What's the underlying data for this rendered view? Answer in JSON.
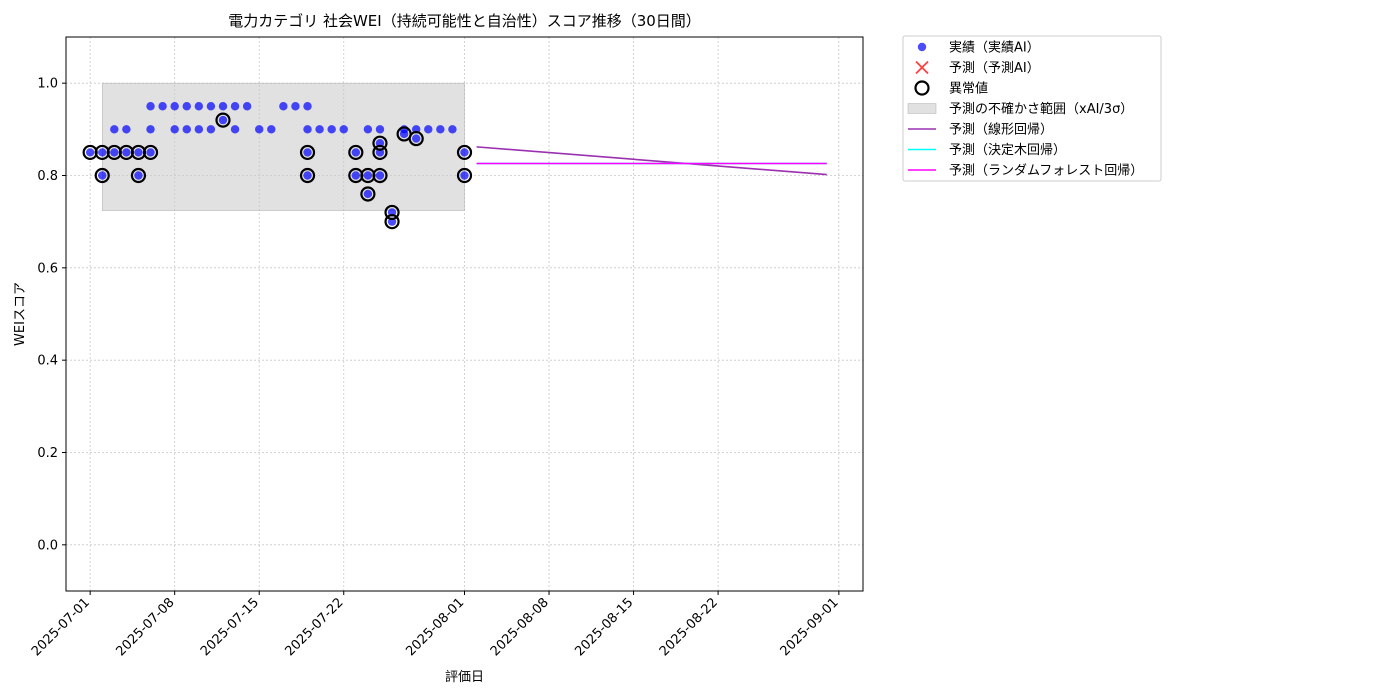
{
  "chart_data": {
    "type": "scatter",
    "title": "電力カテゴリ 社会WEI（持続可能性と自治性）スコア推移（30日間）",
    "xlabel": "評価日",
    "ylabel": "WEIスコア",
    "xlim": [
      "2025-06-29",
      "2025-09-03"
    ],
    "ylim": [
      -0.1,
      1.1
    ],
    "grid": true,
    "legend_position": "outside-top-right",
    "x_ticks": [
      "2025-07-01",
      "2025-07-08",
      "2025-07-15",
      "2025-07-22",
      "2025-08-01",
      "2025-08-08",
      "2025-08-15",
      "2025-08-22",
      "2025-09-01"
    ],
    "y_ticks": [
      "0.0",
      "0.2",
      "0.4",
      "0.6",
      "0.8",
      "1.0"
    ],
    "y_tick_values": [
      0.0,
      0.2,
      0.4,
      0.6,
      0.8,
      1.0
    ],
    "actual": {
      "name": "実績（実績AI）",
      "color": "#0000ff",
      "points": [
        [
          "2025-07-01",
          0.85
        ],
        [
          "2025-07-02",
          0.85
        ],
        [
          "2025-07-02",
          0.8
        ],
        [
          "2025-07-03",
          0.85
        ],
        [
          "2025-07-03",
          0.9
        ],
        [
          "2025-07-04",
          0.85
        ],
        [
          "2025-07-04",
          0.9
        ],
        [
          "2025-07-05",
          0.8
        ],
        [
          "2025-07-05",
          0.85
        ],
        [
          "2025-07-06",
          0.85
        ],
        [
          "2025-07-06",
          0.9
        ],
        [
          "2025-07-06",
          0.95
        ],
        [
          "2025-07-07",
          0.95
        ],
        [
          "2025-07-08",
          0.95
        ],
        [
          "2025-07-08",
          0.9
        ],
        [
          "2025-07-09",
          0.95
        ],
        [
          "2025-07-09",
          0.9
        ],
        [
          "2025-07-10",
          0.9
        ],
        [
          "2025-07-10",
          0.95
        ],
        [
          "2025-07-11",
          0.9
        ],
        [
          "2025-07-11",
          0.95
        ],
        [
          "2025-07-12",
          0.92
        ],
        [
          "2025-07-12",
          0.95
        ],
        [
          "2025-07-13",
          0.9
        ],
        [
          "2025-07-13",
          0.95
        ],
        [
          "2025-07-14",
          0.95
        ],
        [
          "2025-07-15",
          0.9
        ],
        [
          "2025-07-16",
          0.9
        ],
        [
          "2025-07-17",
          0.95
        ],
        [
          "2025-07-18",
          0.95
        ],
        [
          "2025-07-19",
          0.85
        ],
        [
          "2025-07-19",
          0.8
        ],
        [
          "2025-07-19",
          0.95
        ],
        [
          "2025-07-19",
          0.9
        ],
        [
          "2025-07-20",
          0.9
        ],
        [
          "2025-07-21",
          0.9
        ],
        [
          "2025-07-22",
          0.9
        ],
        [
          "2025-07-23",
          0.85
        ],
        [
          "2025-07-23",
          0.8
        ],
        [
          "2025-07-24",
          0.8
        ],
        [
          "2025-07-24",
          0.76
        ],
        [
          "2025-07-24",
          0.9
        ],
        [
          "2025-07-25",
          0.85
        ],
        [
          "2025-07-25",
          0.8
        ],
        [
          "2025-07-25",
          0.87
        ],
        [
          "2025-07-25",
          0.9
        ],
        [
          "2025-07-26",
          0.72
        ],
        [
          "2025-07-26",
          0.7
        ],
        [
          "2025-07-27",
          0.89
        ],
        [
          "2025-07-27",
          0.9
        ],
        [
          "2025-07-28",
          0.88
        ],
        [
          "2025-07-28",
          0.9
        ],
        [
          "2025-07-29",
          0.9
        ],
        [
          "2025-07-30",
          0.9
        ],
        [
          "2025-07-31",
          0.9
        ],
        [
          "2025-08-01",
          0.85
        ],
        [
          "2025-08-01",
          0.8
        ]
      ]
    },
    "predicted": {
      "name": "予測（予測AI）",
      "color": "#ff0000",
      "points": []
    },
    "anomalies": {
      "name": "異常値",
      "points": [
        [
          "2025-07-01",
          0.85
        ],
        [
          "2025-07-02",
          0.85
        ],
        [
          "2025-07-02",
          0.8
        ],
        [
          "2025-07-03",
          0.85
        ],
        [
          "2025-07-04",
          0.85
        ],
        [
          "2025-07-05",
          0.8
        ],
        [
          "2025-07-05",
          0.85
        ],
        [
          "2025-07-06",
          0.85
        ],
        [
          "2025-07-12",
          0.92
        ],
        [
          "2025-07-19",
          0.85
        ],
        [
          "2025-07-19",
          0.8
        ],
        [
          "2025-07-23",
          0.85
        ],
        [
          "2025-07-23",
          0.8
        ],
        [
          "2025-07-24",
          0.8
        ],
        [
          "2025-07-24",
          0.76
        ],
        [
          "2025-07-25",
          0.85
        ],
        [
          "2025-07-25",
          0.8
        ],
        [
          "2025-07-25",
          0.87
        ],
        [
          "2025-07-26",
          0.72
        ],
        [
          "2025-07-26",
          0.7
        ],
        [
          "2025-07-27",
          0.89
        ],
        [
          "2025-07-28",
          0.88
        ],
        [
          "2025-08-01",
          0.85
        ],
        [
          "2025-08-01",
          0.8
        ]
      ]
    },
    "uncertainty_band": {
      "name": "予測の不確かさ範囲（xAI/3σ）",
      "x_start": "2025-07-02",
      "x_end": "2025-08-01",
      "y_low": 0.724,
      "y_high": 1.0,
      "color": "#c8c8c8"
    },
    "lines": [
      {
        "name": "予測（線形回帰）",
        "color": "#9b30b0",
        "points": [
          [
            "2025-08-02",
            0.862
          ],
          [
            "2025-08-31",
            0.802
          ]
        ]
      },
      {
        "name": "予測（決定木回帰）",
        "color": "#00ffff",
        "points": [
          [
            "2025-08-02",
            0.826
          ],
          [
            "2025-08-31",
            0.826
          ]
        ]
      },
      {
        "name": "予測（ランダムフォレスト回帰）",
        "color": "#ff00ff",
        "points": [
          [
            "2025-08-02",
            0.826
          ],
          [
            "2025-08-31",
            0.826
          ]
        ]
      }
    ]
  }
}
